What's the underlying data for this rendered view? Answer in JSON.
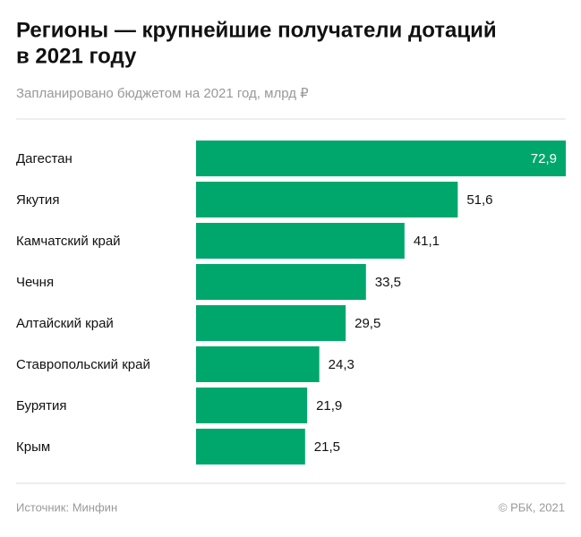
{
  "chart_data": {
    "type": "bar",
    "orientation": "horizontal",
    "title": [
      "Регионы — крупнейшие получатели дотаций",
      "в 2021 году"
    ],
    "subtitle": "Запланировано бюджетом на 2021 год, млрд ₽",
    "categories": [
      "Дагестан",
      "Якутия",
      "Камчатский край",
      "Чечня",
      "Алтайский край",
      "Ставропольский край",
      "Бурятия",
      "Крым"
    ],
    "values": [
      72.9,
      51.6,
      41.1,
      33.5,
      29.5,
      24.3,
      21.9,
      21.5
    ],
    "value_labels": [
      "72,9",
      "51,6",
      "41,1",
      "33,5",
      "29,5",
      "24,3",
      "21,9",
      "21,5"
    ],
    "color": "#00a76d",
    "source": "Источник: Минфин",
    "credit": "© РБК, 2021"
  }
}
